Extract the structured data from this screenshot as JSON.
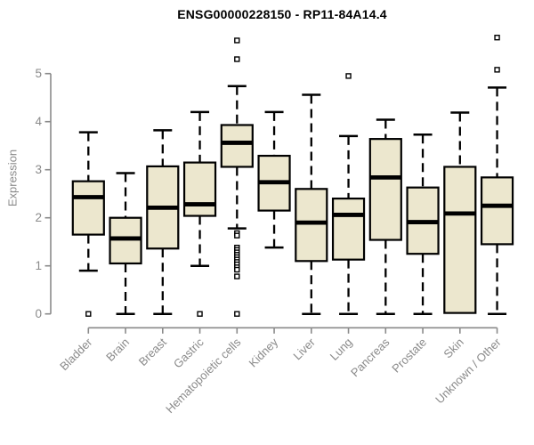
{
  "chart_data": {
    "type": "boxplot",
    "title": "ENSG00000228150 - RP11-84A14.4",
    "ylabel": "Expression",
    "xlabel": "",
    "ylim": [
      0,
      5.8
    ],
    "yticks": [
      0,
      1,
      2,
      3,
      4,
      5
    ],
    "grid": false,
    "legend": "none",
    "colors": {
      "box_fill": "#ece7ce",
      "box_stroke": "#000000",
      "median": "#000000",
      "whisker": "#000000",
      "axis": "#8a8a8a",
      "tick_label": "#8a8a8a",
      "title": "#000000",
      "background": "#ffffff"
    },
    "categories": [
      "Bladder",
      "Brain",
      "Breast",
      "Gastric",
      "Hematopoietic cells",
      "Kidney",
      "Liver",
      "Lung",
      "Pancreas",
      "Prostate",
      "Skin",
      "Unknown / Other"
    ],
    "series": [
      {
        "name": "Bladder",
        "low": 0.9,
        "q1": 1.65,
        "median": 2.43,
        "q3": 2.76,
        "high": 3.78,
        "outliers": [
          0.0
        ]
      },
      {
        "name": "Brain",
        "low": 0.0,
        "q1": 1.05,
        "median": 1.57,
        "q3": 2.0,
        "high": 2.93,
        "outliers": []
      },
      {
        "name": "Breast",
        "low": 0.0,
        "q1": 1.36,
        "median": 2.21,
        "q3": 3.07,
        "high": 3.82,
        "outliers": []
      },
      {
        "name": "Gastric",
        "low": 1.0,
        "q1": 2.04,
        "median": 2.28,
        "q3": 3.15,
        "high": 4.2,
        "outliers": [
          0.0
        ]
      },
      {
        "name": "Hematopoietic cells",
        "low": 1.78,
        "q1": 3.06,
        "median": 3.56,
        "q3": 3.93,
        "high": 4.74,
        "outliers": [
          5.69,
          5.3,
          1.68,
          1.63,
          1.38,
          1.33,
          1.28,
          1.23,
          1.18,
          1.13,
          1.08,
          1.03,
          0.97,
          0.92,
          0.78,
          0.0
        ]
      },
      {
        "name": "Kidney",
        "low": 1.38,
        "q1": 2.15,
        "median": 2.74,
        "q3": 3.29,
        "high": 4.2,
        "outliers": []
      },
      {
        "name": "Liver",
        "low": 0.0,
        "q1": 1.1,
        "median": 1.9,
        "q3": 2.6,
        "high": 4.56,
        "outliers": []
      },
      {
        "name": "Lung",
        "low": 0.0,
        "q1": 1.13,
        "median": 2.06,
        "q3": 2.4,
        "high": 3.7,
        "outliers": [
          4.95
        ]
      },
      {
        "name": "Pancreas",
        "low": 0.0,
        "q1": 1.54,
        "median": 2.84,
        "q3": 3.64,
        "high": 4.04,
        "outliers": []
      },
      {
        "name": "Prostate",
        "low": 0.0,
        "q1": 1.25,
        "median": 1.91,
        "q3": 2.63,
        "high": 3.73,
        "outliers": []
      },
      {
        "name": "Skin",
        "low": 0.02,
        "q1": 0.02,
        "median": 2.09,
        "q3": 3.06,
        "high": 4.19,
        "outliers": []
      },
      {
        "name": "Unknown / Other",
        "low": 0.0,
        "q1": 1.45,
        "median": 2.25,
        "q3": 2.84,
        "high": 4.71,
        "outliers": [
          5.75,
          5.08
        ]
      }
    ]
  }
}
